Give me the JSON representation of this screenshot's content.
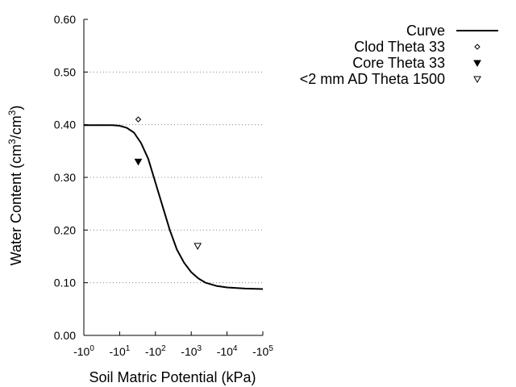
{
  "chart_data": {
    "type": "line",
    "title": "",
    "xlabel": "Soil Matric Potential (kPa)",
    "ylabel": "Water Content (cm3/cm3)",
    "ylabel_parts": {
      "pre": "Water Content (cm",
      "sup1": "3",
      "mid": "/cm",
      "sup2": "3",
      "post": ")"
    },
    "x_scale": "log10 of suction (kPa)",
    "xlim": [
      0,
      5
    ],
    "ylim": [
      0,
      0.6
    ],
    "x_ticks": [
      {
        "base": "-10",
        "exp": "0",
        "value": 0
      },
      {
        "base": "-10",
        "exp": "1",
        "value": 1
      },
      {
        "base": "-10",
        "exp": "2",
        "value": 2
      },
      {
        "base": "-10",
        "exp": "3",
        "value": 3
      },
      {
        "base": "-10",
        "exp": "4",
        "value": 4
      },
      {
        "base": "-10",
        "exp": "5",
        "value": 5
      }
    ],
    "y_ticks": [
      {
        "label": "0.00",
        "value": 0.0
      },
      {
        "label": "0.10",
        "value": 0.1
      },
      {
        "label": "0.20",
        "value": 0.2
      },
      {
        "label": "0.30",
        "value": 0.3
      },
      {
        "label": "0.40",
        "value": 0.4
      },
      {
        "label": "0.50",
        "value": 0.5
      },
      {
        "label": "0.60",
        "value": 0.6
      }
    ],
    "grid": "horizontal dotted",
    "legend_placement": "top-right outside plot",
    "series": [
      {
        "name": "Curve",
        "marker": "line",
        "color": "#000000",
        "x": [
          0,
          0.5,
          0.8,
          1.0,
          1.2,
          1.4,
          1.6,
          1.8,
          2.0,
          2.2,
          2.4,
          2.6,
          2.8,
          3.0,
          3.2,
          3.4,
          3.7,
          4.0,
          4.5,
          5.0
        ],
        "y": [
          0.399,
          0.399,
          0.399,
          0.398,
          0.394,
          0.385,
          0.365,
          0.335,
          0.29,
          0.245,
          0.2,
          0.163,
          0.138,
          0.12,
          0.108,
          0.1,
          0.094,
          0.091,
          0.089,
          0.088
        ]
      },
      {
        "name": "Clod Theta 33",
        "marker": "diamond",
        "color": "#000000",
        "x": [
          1.52
        ],
        "y": [
          0.41
        ]
      },
      {
        "name": "Core Theta 33",
        "marker": "filled-triangle-down",
        "color": "#000000",
        "x": [
          1.52
        ],
        "y": [
          0.33
        ]
      },
      {
        "name": "<2 mm AD Theta 1500",
        "marker": "open-triangle-down",
        "color": "#000000",
        "x": [
          3.18
        ],
        "y": [
          0.17
        ]
      }
    ]
  }
}
